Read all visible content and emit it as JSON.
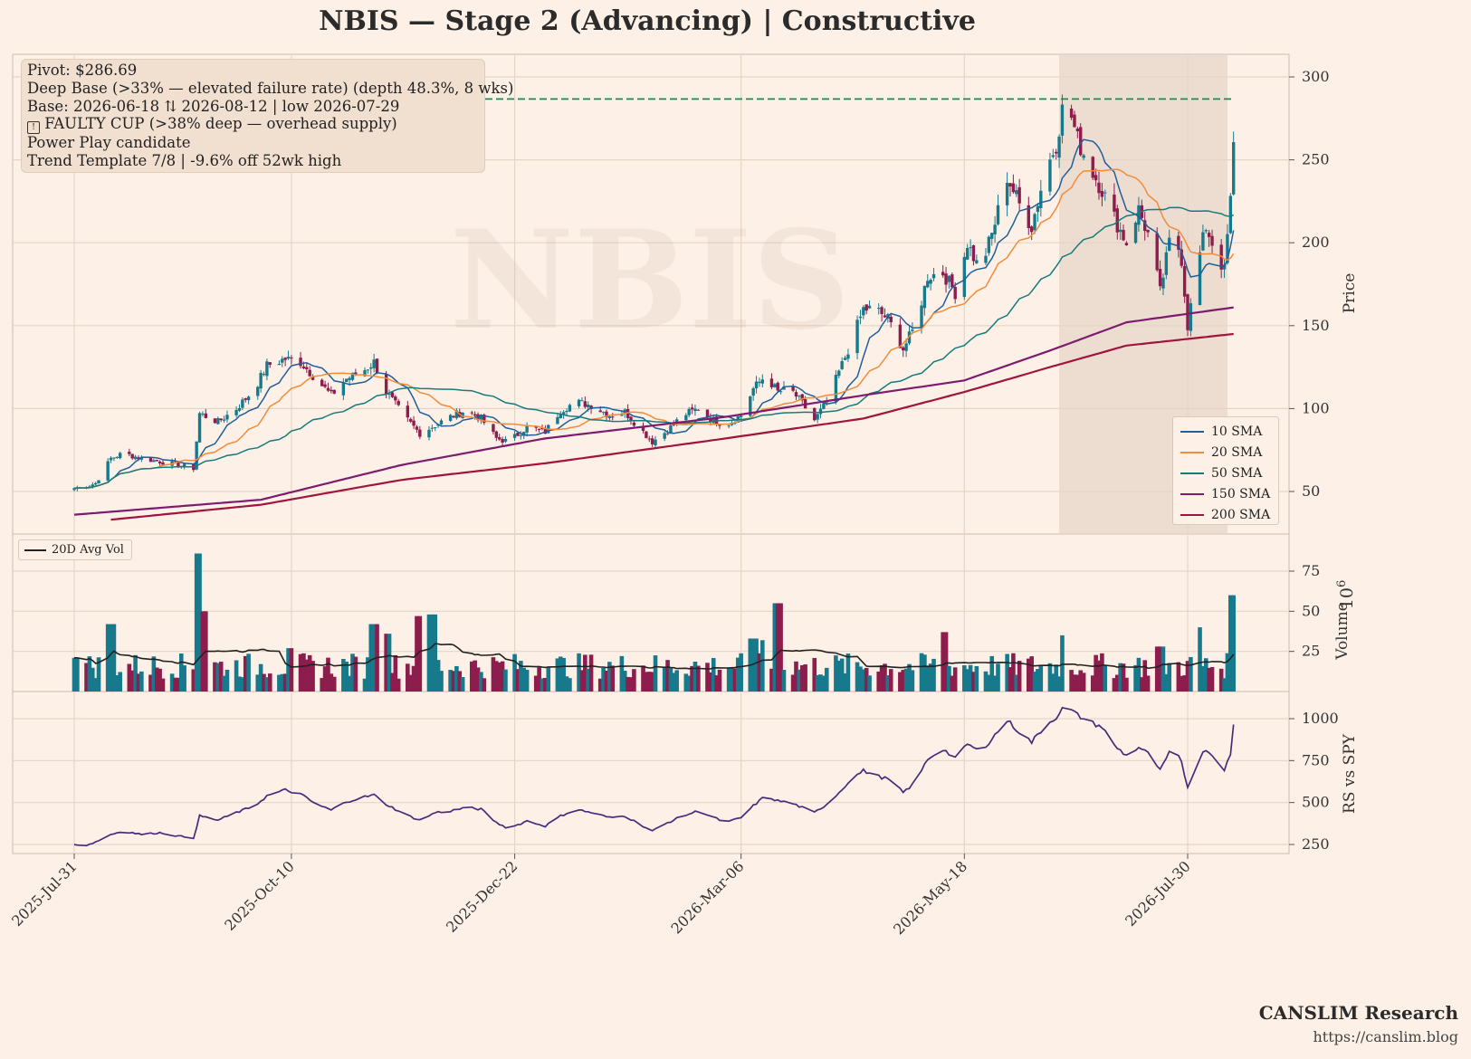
{
  "title": "NBIS  —  Stage 2 (Advancing)  |  Constructive",
  "info_lines": [
    "Pivot: $286.69",
    "Deep Base (>33% — elevated failure rate)  (depth 48.3%, 8 wks)",
    "Base: 2026-06-18 ⇅ 2026-08-12  |  low 2026-07-29",
    "FAULTY CUP (>38% deep — overhead supply)",
    "Power Play candidate",
    "Trend Template 7/8  |  -9.6% off 52wk high"
  ],
  "watermark": "NBIS",
  "brand": {
    "name": "CANSLIM Research",
    "url": "https://canslim.blog"
  },
  "chart_data": {
    "type": "candlestick",
    "ticker": "NBIS",
    "x_range": [
      "2025-07-31",
      "2026-08-14"
    ],
    "x_ticks": [
      "2025-Jul-31",
      "2025-Oct-10",
      "2025-Dec-22",
      "2026-Mar-06",
      "2026-May-18",
      "2026-Jul-30"
    ],
    "pivot": 286.69,
    "base_shading": {
      "start": "2026-06-18",
      "end": "2026-08-12"
    },
    "price_panel": {
      "ylabel": "Price",
      "ylim": [
        20,
        315
      ],
      "yticks": [
        50,
        100,
        150,
        200,
        250,
        300
      ],
      "grid": true,
      "legend_position": "lower-right",
      "close_anchors": [
        [
          "2025-07-31",
          52
        ],
        [
          "2025-08-04",
          53
        ],
        [
          "2025-08-07",
          55
        ],
        [
          "2025-08-12",
          70
        ],
        [
          "2025-08-16",
          73
        ],
        [
          "2025-08-22",
          70
        ],
        [
          "2025-08-28",
          68
        ],
        [
          "2025-09-03",
          66
        ],
        [
          "2025-09-08",
          64
        ],
        [
          "2025-09-10",
          97
        ],
        [
          "2025-09-16",
          92
        ],
        [
          "2025-09-22",
          100
        ],
        [
          "2025-09-28",
          112
        ],
        [
          "2025-10-02",
          126
        ],
        [
          "2025-10-08",
          130
        ],
        [
          "2025-10-13",
          128
        ],
        [
          "2025-10-18",
          118
        ],
        [
          "2025-10-23",
          108
        ],
        [
          "2025-10-28",
          118
        ],
        [
          "2025-11-02",
          122
        ],
        [
          "2025-11-06",
          128
        ],
        [
          "2025-11-10",
          110
        ],
        [
          "2025-11-16",
          95
        ],
        [
          "2025-11-21",
          85
        ],
        [
          "2025-11-26",
          90
        ],
        [
          "2025-12-01",
          95
        ],
        [
          "2025-12-06",
          99
        ],
        [
          "2025-12-11",
          94
        ],
        [
          "2025-12-16",
          82
        ],
        [
          "2025-12-20",
          80
        ],
        [
          "2025-12-26",
          89
        ],
        [
          "2026-01-01",
          86
        ],
        [
          "2026-01-06",
          99
        ],
        [
          "2026-01-11",
          104
        ],
        [
          "2026-01-16",
          102
        ],
        [
          "2026-01-22",
          96
        ],
        [
          "2026-01-27",
          98
        ],
        [
          "2026-01-31",
          90
        ],
        [
          "2026-02-05",
          80
        ],
        [
          "2026-02-10",
          87
        ],
        [
          "2026-02-15",
          96
        ],
        [
          "2026-02-20",
          100
        ],
        [
          "2026-02-24",
          94
        ],
        [
          "2026-03-01",
          90
        ],
        [
          "2026-03-06",
          96
        ],
        [
          "2026-03-10",
          112
        ],
        [
          "2026-03-14",
          120
        ],
        [
          "2026-03-18",
          110
        ],
        [
          "2026-03-22",
          112
        ],
        [
          "2026-03-26",
          103
        ],
        [
          "2026-03-30",
          93
        ],
        [
          "2026-04-03",
          104
        ],
        [
          "2026-04-07",
          122
        ],
        [
          "2026-04-11",
          140
        ],
        [
          "2026-04-15",
          160
        ],
        [
          "2026-04-19",
          160
        ],
        [
          "2026-04-23",
          154
        ],
        [
          "2026-04-28",
          136
        ],
        [
          "2026-05-02",
          150
        ],
        [
          "2026-05-06",
          180
        ],
        [
          "2026-05-11",
          182
        ],
        [
          "2026-05-15",
          170
        ],
        [
          "2026-05-19",
          200
        ],
        [
          "2026-05-23",
          183
        ],
        [
          "2026-05-27",
          205
        ],
        [
          "2026-06-01",
          240
        ],
        [
          "2026-06-05",
          223
        ],
        [
          "2026-06-09",
          210
        ],
        [
          "2026-06-13",
          240
        ],
        [
          "2026-06-17",
          260
        ],
        [
          "2026-06-20",
          290
        ],
        [
          "2026-06-24",
          262
        ],
        [
          "2026-06-28",
          246
        ],
        [
          "2026-07-02",
          232
        ],
        [
          "2026-07-06",
          215
        ],
        [
          "2026-07-10",
          200
        ],
        [
          "2026-07-14",
          220
        ],
        [
          "2026-07-18",
          200
        ],
        [
          "2026-07-21",
          170
        ],
        [
          "2026-07-25",
          210
        ],
        [
          "2026-07-28",
          190
        ],
        [
          "2026-07-30",
          150
        ],
        [
          "2026-08-02",
          185
        ],
        [
          "2026-08-05",
          210
        ],
        [
          "2026-08-08",
          195
        ],
        [
          "2026-08-11",
          183
        ],
        [
          "2026-08-13",
          225
        ],
        [
          "2026-08-14",
          258
        ]
      ],
      "sma": [
        {
          "name": "10 SMA",
          "color": "#1f5f9b",
          "period": 10
        },
        {
          "name": "20 SMA",
          "color": "#f28c3b",
          "period": 20
        },
        {
          "name": "50 SMA",
          "color": "#177a7d",
          "period": 50
        },
        {
          "name": "150 SMA",
          "color": "#7d1b6e",
          "period": 150
        },
        {
          "name": "200 SMA",
          "color": "#a0153e",
          "period": 200
        }
      ],
      "sma_long_anchors": {
        "150 SMA": [
          [
            "2025-07-31",
            36
          ],
          [
            "2025-09-30",
            45
          ],
          [
            "2025-11-15",
            66
          ],
          [
            "2026-01-01",
            82
          ],
          [
            "2026-03-01",
            95
          ],
          [
            "2026-04-15",
            108
          ],
          [
            "2026-05-18",
            117
          ],
          [
            "2026-06-15",
            135
          ],
          [
            "2026-07-10",
            152
          ],
          [
            "2026-08-14",
            161
          ]
        ],
        "200 SMA": [
          [
            "2025-08-12",
            33
          ],
          [
            "2025-09-30",
            42
          ],
          [
            "2025-11-15",
            57
          ],
          [
            "2026-01-01",
            67
          ],
          [
            "2026-03-01",
            82
          ],
          [
            "2026-04-15",
            94
          ],
          [
            "2026-05-18",
            110
          ],
          [
            "2026-06-15",
            125
          ],
          [
            "2026-07-10",
            138
          ],
          [
            "2026-08-14",
            145
          ]
        ]
      }
    },
    "volume_panel": {
      "ylabel": "Volume",
      "unit_label": "10^6",
      "ylim": [
        0,
        85
      ],
      "yticks": [
        25,
        50,
        75
      ],
      "avg_label": "20D Avg Vol",
      "spikes": [
        [
          "2025-07-31",
          21
        ],
        [
          "2025-08-12",
          42
        ],
        [
          "2025-09-10",
          86
        ],
        [
          "2025-09-12",
          50
        ],
        [
          "2025-10-10",
          27
        ],
        [
          "2025-11-06",
          42
        ],
        [
          "2025-11-10",
          36
        ],
        [
          "2025-11-21",
          47
        ],
        [
          "2025-11-25",
          48
        ],
        [
          "2026-03-10",
          33
        ],
        [
          "2026-03-14",
          32
        ],
        [
          "2026-03-18",
          55
        ],
        [
          "2026-05-11",
          37
        ],
        [
          "2026-06-20",
          35
        ],
        [
          "2026-07-21",
          28
        ],
        [
          "2026-08-02",
          40
        ],
        [
          "2026-08-14",
          60
        ]
      ]
    },
    "rs_panel": {
      "ylabel": "RS vs SPY",
      "ylim": [
        210,
        1110
      ],
      "yticks": [
        250,
        500,
        750,
        1000
      ],
      "color": "#4b2a7a",
      "anchors": [
        [
          "2025-07-31",
          250
        ],
        [
          "2025-08-04",
          245
        ],
        [
          "2025-08-07",
          265
        ],
        [
          "2025-08-12",
          310
        ],
        [
          "2025-08-16",
          330
        ],
        [
          "2025-08-22",
          310
        ],
        [
          "2025-08-28",
          320
        ],
        [
          "2025-09-03",
          300
        ],
        [
          "2025-09-08",
          290
        ],
        [
          "2025-09-10",
          420
        ],
        [
          "2025-09-16",
          395
        ],
        [
          "2025-09-22",
          440
        ],
        [
          "2025-09-28",
          480
        ],
        [
          "2025-10-02",
          540
        ],
        [
          "2025-10-08",
          575
        ],
        [
          "2025-10-13",
          550
        ],
        [
          "2025-10-18",
          490
        ],
        [
          "2025-10-23",
          455
        ],
        [
          "2025-10-28",
          505
        ],
        [
          "2025-11-02",
          530
        ],
        [
          "2025-11-06",
          545
        ],
        [
          "2025-11-10",
          490
        ],
        [
          "2025-11-16",
          430
        ],
        [
          "2025-11-21",
          395
        ],
        [
          "2025-11-26",
          440
        ],
        [
          "2025-12-01",
          450
        ],
        [
          "2025-12-06",
          470
        ],
        [
          "2025-12-11",
          460
        ],
        [
          "2025-12-16",
          380
        ],
        [
          "2025-12-20",
          345
        ],
        [
          "2025-12-26",
          390
        ],
        [
          "2026-01-01",
          360
        ],
        [
          "2026-01-06",
          420
        ],
        [
          "2026-01-11",
          460
        ],
        [
          "2026-01-16",
          440
        ],
        [
          "2026-01-22",
          410
        ],
        [
          "2026-01-27",
          420
        ],
        [
          "2026-01-31",
          380
        ],
        [
          "2026-02-05",
          330
        ],
        [
          "2026-02-10",
          380
        ],
        [
          "2026-02-15",
          420
        ],
        [
          "2026-02-20",
          450
        ],
        [
          "2026-02-24",
          420
        ],
        [
          "2026-03-01",
          380
        ],
        [
          "2026-03-06",
          410
        ],
        [
          "2026-03-10",
          480
        ],
        [
          "2026-03-14",
          540
        ],
        [
          "2026-03-18",
          510
        ],
        [
          "2026-03-22",
          500
        ],
        [
          "2026-03-26",
          470
        ],
        [
          "2026-03-30",
          440
        ],
        [
          "2026-04-03",
          490
        ],
        [
          "2026-04-07",
          560
        ],
        [
          "2026-04-11",
          640
        ],
        [
          "2026-04-15",
          690
        ],
        [
          "2026-04-19",
          660
        ],
        [
          "2026-04-23",
          640
        ],
        [
          "2026-04-28",
          560
        ],
        [
          "2026-05-02",
          620
        ],
        [
          "2026-05-06",
          760
        ],
        [
          "2026-05-11",
          820
        ],
        [
          "2026-05-15",
          760
        ],
        [
          "2026-05-19",
          850
        ],
        [
          "2026-05-23",
          800
        ],
        [
          "2026-05-27",
          880
        ],
        [
          "2026-06-01",
          990
        ],
        [
          "2026-06-05",
          920
        ],
        [
          "2026-06-09",
          860
        ],
        [
          "2026-06-13",
          950
        ],
        [
          "2026-06-17",
          1010
        ],
        [
          "2026-06-20",
          1080
        ],
        [
          "2026-06-24",
          1020
        ],
        [
          "2026-06-28",
          980
        ],
        [
          "2026-07-02",
          950
        ],
        [
          "2026-07-06",
          840
        ],
        [
          "2026-07-10",
          780
        ],
        [
          "2026-07-14",
          830
        ],
        [
          "2026-07-18",
          780
        ],
        [
          "2026-07-21",
          690
        ],
        [
          "2026-07-25",
          830
        ],
        [
          "2026-07-28",
          740
        ],
        [
          "2026-07-30",
          590
        ],
        [
          "2026-08-02",
          740
        ],
        [
          "2026-08-05",
          820
        ],
        [
          "2026-08-08",
          760
        ],
        [
          "2026-08-11",
          700
        ],
        [
          "2026-08-13",
          780
        ],
        [
          "2026-08-14",
          960
        ]
      ]
    }
  },
  "colors": {
    "background": "#fdf0e6",
    "up": "#177a8c",
    "down": "#8c1d4c",
    "pivot_line": "#1e8a56",
    "grid": "#e6d5c5",
    "base_shade": "#ead9cc"
  }
}
